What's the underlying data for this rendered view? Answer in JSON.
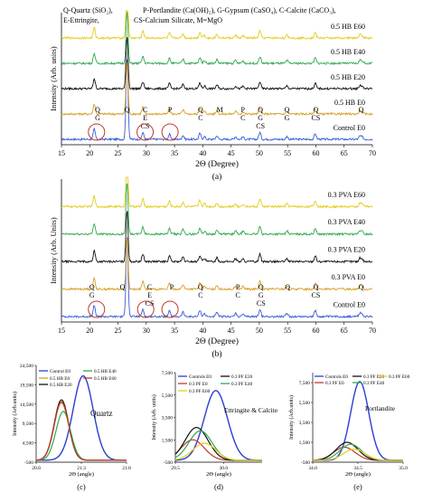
{
  "chart_data": [
    {
      "id": "a",
      "type": "line",
      "caption": "(a)",
      "xlabel": "2Θ (Degree)",
      "ylabel": "Intensity (Arb. units)",
      "xlim": [
        15,
        70
      ],
      "xticks": [
        15,
        20,
        25,
        30,
        35,
        40,
        45,
        50,
        55,
        60,
        65,
        70
      ],
      "legend_lines": [
        "Q-Quartz (SiO₂),",
        "P-Portlandite (Ca(OH)₂), G-Gypsum (CaSO₄), C-Calcite (CaCO₃),",
        "E-Ettringite,",
        "CS-Calcium Silicate, M=MgO"
      ],
      "series": [
        {
          "name": "Control E0",
          "color": "#3b5bd6"
        },
        {
          "name": "0.5 HB E0",
          "color": "#d6a02a"
        },
        {
          "name": "0.5 HB E20",
          "color": "#111111"
        },
        {
          "name": "0.5 HB E40",
          "color": "#2fa84f"
        },
        {
          "name": "0.5 HB E60",
          "color": "#e4cc1e"
        }
      ],
      "peaks": [
        {
          "x": 20.8,
          "h": 0.45
        },
        {
          "x": 26.6,
          "h": 1.0
        },
        {
          "x": 29.4,
          "h": 0.3
        },
        {
          "x": 34.1,
          "h": 0.22
        },
        {
          "x": 36.5,
          "h": 0.18
        },
        {
          "x": 39.5,
          "h": 0.26
        },
        {
          "x": 40.3,
          "h": 0.12
        },
        {
          "x": 42.5,
          "h": 0.16
        },
        {
          "x": 45.8,
          "h": 0.12
        },
        {
          "x": 47.1,
          "h": 0.1
        },
        {
          "x": 50.1,
          "h": 0.3
        },
        {
          "x": 54.9,
          "h": 0.12
        },
        {
          "x": 59.9,
          "h": 0.24
        },
        {
          "x": 67.8,
          "h": 0.14
        },
        {
          "x": 68.2,
          "h": 0.1
        }
      ],
      "phase_labels": [
        {
          "x": 21.4,
          "lines": [
            "Q",
            "G"
          ]
        },
        {
          "x": 26.6,
          "lines": [
            "Q"
          ]
        },
        {
          "x": 29.8,
          "lines": [
            "C",
            "E",
            "CS"
          ]
        },
        {
          "x": 34.2,
          "lines": [
            "P"
          ]
        },
        {
          "x": 39.6,
          "lines": [
            "Q",
            "C"
          ]
        },
        {
          "x": 43.0,
          "lines": [
            "M"
          ]
        },
        {
          "x": 47.1,
          "lines": [
            "P",
            "C"
          ]
        },
        {
          "x": 50.2,
          "lines": [
            "Q",
            "G",
            "CS"
          ]
        },
        {
          "x": 54.9,
          "lines": [
            "Q",
            "G"
          ]
        },
        {
          "x": 60.0,
          "lines": [
            "Q",
            "CS"
          ]
        },
        {
          "x": 68.0,
          "lines": [
            "Q"
          ]
        }
      ],
      "circles": [
        21.2,
        29.8,
        34.2
      ]
    },
    {
      "id": "b",
      "type": "line",
      "caption": "(b)",
      "xlabel": "2Θ (Degree)",
      "ylabel": "Intensity (Arb. Units)",
      "xlim": [
        15,
        70
      ],
      "xticks": [
        15,
        20,
        25,
        30,
        35,
        40,
        45,
        50,
        55,
        60,
        65,
        70
      ],
      "series": [
        {
          "name": "Control E0",
          "color": "#3b5bd6"
        },
        {
          "name": "0.3 PVA E0",
          "color": "#d6a02a"
        },
        {
          "name": "0.3 PVA E20",
          "color": "#111111"
        },
        {
          "name": "0.3 PVA E40",
          "color": "#2fa84f"
        },
        {
          "name": "0.3 PVA E60",
          "color": "#e4cc1e"
        }
      ],
      "peaks": [
        {
          "x": 20.8,
          "h": 0.45
        },
        {
          "x": 26.6,
          "h": 1.0
        },
        {
          "x": 29.4,
          "h": 0.3
        },
        {
          "x": 34.1,
          "h": 0.22
        },
        {
          "x": 36.5,
          "h": 0.18
        },
        {
          "x": 39.5,
          "h": 0.26
        },
        {
          "x": 40.3,
          "h": 0.12
        },
        {
          "x": 42.5,
          "h": 0.16
        },
        {
          "x": 45.8,
          "h": 0.12
        },
        {
          "x": 47.1,
          "h": 0.1
        },
        {
          "x": 50.1,
          "h": 0.3
        },
        {
          "x": 54.9,
          "h": 0.12
        },
        {
          "x": 59.9,
          "h": 0.24
        },
        {
          "x": 67.8,
          "h": 0.14
        },
        {
          "x": 68.2,
          "h": 0.1
        }
      ],
      "phase_labels": [
        {
          "x": 20.4,
          "lines": [
            "Q",
            "G"
          ]
        },
        {
          "x": 25.8,
          "lines": [
            "Q"
          ]
        },
        {
          "x": 30.6,
          "lines": [
            "C",
            "E",
            "CS"
          ]
        },
        {
          "x": 34.5,
          "lines": [
            "P"
          ]
        },
        {
          "x": 39.6,
          "lines": [
            "Q",
            "C"
          ]
        },
        {
          "x": 46.2,
          "lines": [
            "P",
            "C"
          ]
        },
        {
          "x": 50.3,
          "lines": [
            "Q",
            "G",
            "CS"
          ]
        },
        {
          "x": 55.0,
          "lines": [
            "Q"
          ]
        },
        {
          "x": 60.0,
          "lines": [
            "Q",
            "CS"
          ]
        },
        {
          "x": 68.0,
          "lines": [
            "Q"
          ]
        }
      ],
      "circles": [
        21.2,
        29.9,
        34.2
      ]
    },
    {
      "id": "c",
      "type": "line",
      "caption": "(c)",
      "title": "Quartz",
      "xlabel": "2Θ (angle)",
      "ylabel": "Intensity (Arb.units)",
      "xlim": [
        20.8,
        21.8
      ],
      "ylim": [
        -500,
        24500
      ],
      "xticks": [
        20.8,
        21.3,
        21.8
      ],
      "xticklabels": [
        "20.8",
        "21.3",
        "21.8"
      ],
      "yticks": [
        -500,
        4500,
        9500,
        14500,
        19500,
        24500
      ],
      "yticklabels": [
        "-500",
        "4,500",
        "9,500",
        "14,500",
        "19,500",
        "24,500"
      ],
      "series": [
        {
          "name": "Control E0",
          "color": "#2c3fcf",
          "peak_x": 21.32,
          "peak_y": 21800,
          "width": 0.11
        },
        {
          "name": "0.5 HB E0",
          "color": "#d6a02a",
          "peak_x": 21.08,
          "peak_y": 14800,
          "width": 0.08
        },
        {
          "name": "0.5 HB E20",
          "color": "#111111",
          "peak_x": 21.08,
          "peak_y": 15600,
          "width": 0.08
        },
        {
          "name": "0.5 HB E40",
          "color": "#2fa84f",
          "peak_x": 21.1,
          "peak_y": 12600,
          "width": 0.08
        },
        {
          "name": "0.5 HB E60",
          "color": "#c0392b",
          "peak_x": 21.08,
          "peak_y": 15100,
          "width": 0.08
        }
      ]
    },
    {
      "id": "d",
      "type": "line",
      "caption": "(d)",
      "title": "Ettringite & Calcite",
      "xlabel": "2Θ (angle)",
      "ylabel": "Intensity (Arb. units)",
      "xlim": [
        29.5,
        30.4
      ],
      "ylim": [
        -500,
        7500
      ],
      "xticks": [
        29.5,
        30.0
      ],
      "xticklabels": [
        "29.5",
        "30.0"
      ],
      "yticks": [
        -500,
        1500,
        3500,
        5500,
        7500
      ],
      "yticklabels": [
        "-500",
        "1,500",
        "3,500",
        "5,500",
        "7,500"
      ],
      "series": [
        {
          "name": "Controls E0",
          "color": "#2c3fcf",
          "peak_x": 29.92,
          "peak_y": 5900,
          "width": 0.12
        },
        {
          "name": "0.3 PF E0",
          "color": "#c0392b",
          "peak_x": 29.68,
          "peak_y": 1500,
          "width": 0.12
        },
        {
          "name": "0.3 PF E20",
          "color": "#111111",
          "peak_x": 29.72,
          "peak_y": 2600,
          "width": 0.12
        },
        {
          "name": "0.3 PF E40",
          "color": "#2fa84f",
          "peak_x": 29.76,
          "peak_y": 2300,
          "width": 0.12
        },
        {
          "name": "0.3 PF E60",
          "color": "#e4cc1e",
          "peak_x": 29.8,
          "peak_y": 1200,
          "width": 0.12
        }
      ]
    },
    {
      "id": "e",
      "type": "line",
      "caption": "(e)",
      "title": "Portlandite",
      "xlabel": "2Θ (angle)",
      "ylabel": "Intensity (Arb.units)",
      "xlim": [
        34.0,
        35.0
      ],
      "ylim": [
        -500,
        8500
      ],
      "xticks": [
        34.0,
        34.5,
        35.0
      ],
      "xticklabels": [
        "34.0",
        "34.5",
        "35.0"
      ],
      "yticks": [
        -500,
        1500,
        3500,
        5500,
        7500
      ],
      "yticklabels": [
        "-500",
        "1,500",
        "3,500",
        "5,500",
        "7,500"
      ],
      "series": [
        {
          "name": "Controls E0",
          "color": "#2c3fcf",
          "peak_x": 34.52,
          "peak_y": 7600,
          "width": 0.1
        },
        {
          "name": "0.3 PF E0",
          "color": "#c0392b",
          "peak_x": 34.35,
          "peak_y": 1000,
          "width": 0.12
        },
        {
          "name": "0.3 PF E20",
          "color": "#111111",
          "peak_x": 34.38,
          "peak_y": 1500,
          "width": 0.12
        },
        {
          "name": "0.3 PF E40",
          "color": "#2fa84f",
          "peak_x": 34.42,
          "peak_y": 1300,
          "width": 0.12
        },
        {
          "name": "0.3 PF E60",
          "color": "#e4cc1e",
          "peak_x": 34.46,
          "peak_y": 800,
          "width": 0.12
        }
      ]
    }
  ]
}
